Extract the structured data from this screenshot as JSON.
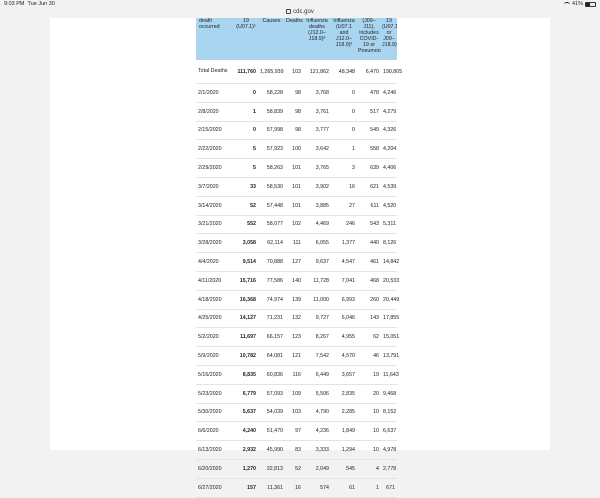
{
  "statusbar": {
    "time": "9:03 PM",
    "date": "Tue Jun 30",
    "battery": "41%",
    "battery_level": 0.41
  },
  "url": "cdc.gov",
  "table": {
    "headers": [
      "death occurred",
      "19 (U07.1)¹",
      "Causes",
      "Deaths²",
      "Influenza deaths (J12.0–J18.9)³",
      "Influenza (U07.1 and J12.0–J18.9)³",
      "(J09–J11), includes COVID-19 or Pneumonia⁴",
      "19 (U07.1 or J09–J18.9)⁶"
    ],
    "rows": [
      [
        "Total Deaths",
        "111,760",
        "1,265,939",
        "103",
        "121,862",
        "48,348",
        "6,470",
        "190,805"
      ],
      [
        "2/1/2020",
        "0",
        "58,228",
        "98",
        "3,768",
        "0",
        "478",
        "4,246"
      ],
      [
        "2/8/2020",
        "1",
        "58,839",
        "98",
        "3,761",
        "0",
        "517",
        "4,279"
      ],
      [
        "2/15/2020",
        "0",
        "57,998",
        "98",
        "3,777",
        "0",
        "549",
        "4,326"
      ],
      [
        "2/22/2020",
        "5",
        "57,923",
        "100",
        "3,642",
        "1",
        "558",
        "4,204"
      ],
      [
        "2/29/2020",
        "5",
        "58,263",
        "101",
        "3,765",
        "3",
        "639",
        "4,406"
      ],
      [
        "3/7/2020",
        "33",
        "58,530",
        "101",
        "3,902",
        "16",
        "621",
        "4,539"
      ],
      [
        "3/14/2020",
        "52",
        "57,448",
        "101",
        "3,885",
        "27",
        "611",
        "4,520"
      ],
      [
        "3/21/2020",
        "552",
        "58,077",
        "102",
        "4,469",
        "246",
        "543",
        "5,311"
      ],
      [
        "3/28/2020",
        "3,058",
        "62,114",
        "111",
        "6,055",
        "1,377",
        "440",
        "8,126"
      ],
      [
        "4/4/2020",
        "9,514",
        "70,888",
        "127",
        "9,637",
        "4,547",
        "461",
        "14,842"
      ],
      [
        "4/11/2020",
        "15,716",
        "77,586",
        "140",
        "11,728",
        "7,041",
        "468",
        "20,533"
      ],
      [
        "4/18/2020",
        "16,368",
        "74,974",
        "139",
        "11,000",
        "6,993",
        "260",
        "20,449"
      ],
      [
        "4/25/2020",
        "14,127",
        "71,231",
        "132",
        "9,727",
        "6,046",
        "143",
        "17,855"
      ],
      [
        "5/2/2020",
        "11,697",
        "66,157",
        "123",
        "8,267",
        "4,955",
        "62",
        "15,051"
      ],
      [
        "5/9/2020",
        "10,782",
        "64,081",
        "121",
        "7,542",
        "4,570",
        "46",
        "13,791"
      ],
      [
        "5/16/2020",
        "8,835",
        "60,836",
        "116",
        "6,449",
        "3,657",
        "19",
        "11,643"
      ],
      [
        "5/23/2020",
        "6,779",
        "57,093",
        "109",
        "5,506",
        "2,835",
        "20",
        "9,468"
      ],
      [
        "5/30/2020",
        "5,637",
        "54,039",
        "103",
        "4,790",
        "2,285",
        "10",
        "8,152"
      ],
      [
        "6/6/2020",
        "4,240",
        "51,470",
        "97",
        "4,236",
        "1,849",
        "10",
        "6,637"
      ],
      [
        "6/13/2020",
        "2,932",
        "45,990",
        "83",
        "3,333",
        "1,294",
        "10",
        "4,978"
      ],
      [
        "6/20/2020",
        "1,270",
        "32,813",
        "52",
        "2,049",
        "545",
        "4",
        "2,778"
      ],
      [
        "6/27/2020",
        "157",
        "11,361",
        "16",
        "574",
        "61",
        "1",
        "671"
      ]
    ]
  }
}
